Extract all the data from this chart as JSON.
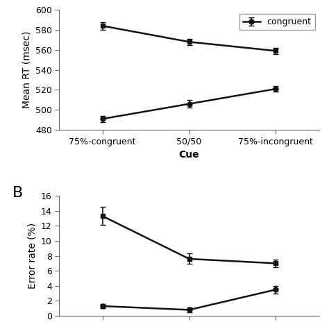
{
  "x_labels": [
    "75%-congruent",
    "50/50",
    "75%-incongruent"
  ],
  "x_positions": [
    0,
    1,
    2
  ],
  "rt_incongruent": [
    584,
    568,
    559
  ],
  "rt_congruent": [
    491,
    506,
    521
  ],
  "rt_incongruent_err": [
    4,
    3,
    3
  ],
  "rt_congruent_err": [
    3,
    4,
    3
  ],
  "rt_ylim": [
    480,
    600
  ],
  "rt_yticks": [
    480,
    500,
    520,
    540,
    560,
    580,
    600
  ],
  "rt_ylabel": "Mean RT (msec)",
  "rt_xlabel": "Cue",
  "err_incongruent": [
    13.3,
    7.6,
    7.0
  ],
  "err_congruent": [
    1.3,
    0.8,
    3.5
  ],
  "err_incongruent_err": [
    1.2,
    0.7,
    0.5
  ],
  "err_congruent_err": [
    0.3,
    0.3,
    0.5
  ],
  "err_ylim": [
    0,
    16
  ],
  "err_yticks": [
    0,
    2,
    4,
    6,
    8,
    10,
    12,
    14,
    16
  ],
  "err_ylabel": "Error rate (%)",
  "legend_label": "congruent",
  "panel_b_label": "B",
  "line_color": "#111111",
  "background_color": "#ffffff",
  "marker_incongruent": "s",
  "marker_congruent": "o",
  "markersize": 5,
  "linewidth": 1.8,
  "capsize": 3,
  "elinewidth": 1.2,
  "tick_fontsize": 9,
  "label_fontsize": 10
}
